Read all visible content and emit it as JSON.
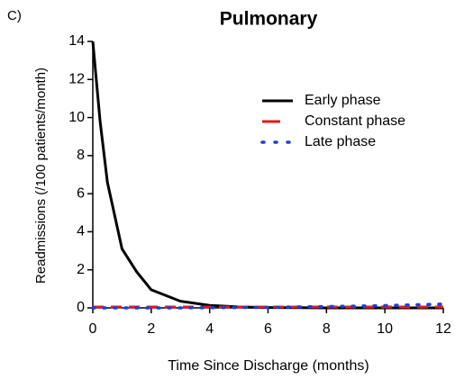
{
  "chart_data": {
    "type": "line",
    "panel_label": "C)",
    "title": "Pulmonary",
    "x_label": "Time Since Discharge (months)",
    "y_label": "Readmissions (/100 patients/month)",
    "x": [
      0,
      0.25,
      0.5,
      1,
      1.5,
      2,
      3,
      4,
      5,
      6,
      7,
      8,
      9,
      10,
      11,
      12
    ],
    "series": [
      {
        "name": "Early phase",
        "color": "#000000",
        "style": "solid",
        "values": [
          14,
          9.8,
          6.6,
          3.1,
          1.9,
          0.95,
          0.35,
          0.13,
          0.05,
          0.02,
          0.01,
          0,
          0,
          0,
          0,
          0
        ]
      },
      {
        "name": "Constant phase",
        "color": "#e31a1c",
        "style": "dashed",
        "values": [
          0.05,
          0.05,
          0.05,
          0.05,
          0.05,
          0.05,
          0.05,
          0.05,
          0.05,
          0.05,
          0.05,
          0.05,
          0.05,
          0.05,
          0.05,
          0.05
        ]
      },
      {
        "name": "Late phase",
        "color": "#1f3fd6",
        "style": "dotted",
        "values": [
          0,
          0,
          0,
          0,
          0,
          0,
          0,
          0.01,
          0.02,
          0.03,
          0.05,
          0.07,
          0.09,
          0.12,
          0.16,
          0.2
        ]
      }
    ],
    "xlim": [
      0,
      12
    ],
    "xticks": [
      0,
      2,
      4,
      6,
      8,
      10,
      12
    ],
    "ylim": [
      0,
      14
    ],
    "yticks": [
      0,
      2,
      4,
      6,
      8,
      10,
      12,
      14
    ],
    "grid": false,
    "legend": "upper right"
  }
}
